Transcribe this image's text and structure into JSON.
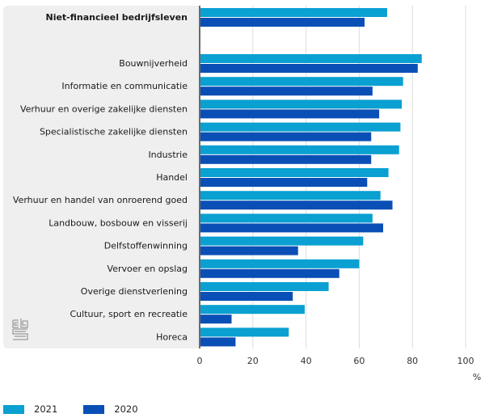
{
  "chart_data": {
    "type": "bar",
    "orientation": "horizontal",
    "title": "",
    "xlabel": "",
    "unit_label": "%",
    "xlim": [
      0,
      100
    ],
    "xticks": [
      0,
      20,
      40,
      60,
      80,
      100
    ],
    "grid": true,
    "legend_position": "bottom-left",
    "categories": [
      "Niet-financieel bedrijfsleven",
      "Bouwnijverheid",
      "Informatie en communicatie",
      "Verhuur en overige zakelijke diensten",
      "Specialistische zakelijke diensten",
      "Industrie",
      "Handel",
      "Verhuur en handel van onroerend goed",
      "Landbouw, bosbouw en visserij",
      "Delfstoffenwinning",
      "Vervoer en opslag",
      "Overige dienstverlening",
      "Cultuur, sport en recreatie",
      "Horeca"
    ],
    "highlighted_category": "Niet-financieel bedrijfsleven",
    "series": [
      {
        "name": "2021",
        "color": "#0aa0d1",
        "values": [
          70.5,
          83.5,
          76.5,
          76,
          75.5,
          75,
          71,
          68,
          65,
          61.5,
          60,
          48.5,
          39.5,
          33.5
        ]
      },
      {
        "name": "2020",
        "color": "#0a4fb5",
        "values": [
          62,
          82,
          65,
          67.5,
          64.5,
          64.5,
          63,
          72.5,
          69,
          37,
          52.5,
          35,
          12,
          13.5
        ]
      }
    ]
  },
  "legend": [
    {
      "label": "2021",
      "color": "#0aa0d1"
    },
    {
      "label": "2020",
      "color": "#0a4fb5"
    }
  ],
  "logo": {
    "name": "cbs",
    "icon": "cbs-logo-icon"
  }
}
